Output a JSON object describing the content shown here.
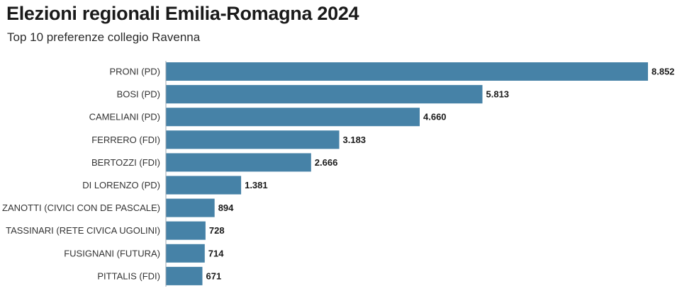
{
  "chart_data": {
    "type": "bar",
    "orientation": "horizontal",
    "title": "Elezioni regionali Emilia-Romagna 2024",
    "subtitle": "Top 10 preferenze collegio Ravenna",
    "categories": [
      "PRONI (PD)",
      "BOSI (PD)",
      "CAMELIANI (PD)",
      "FERRERO (FDI)",
      "BERTOZZI (FDI)",
      "DI LORENZO (PD)",
      "ZANOTTI (CIVICI CON DE PASCALE)",
      "TASSINARI (RETE CIVICA UGOLINI)",
      "FUSIGNANI (FUTURA)",
      "PITTALIS (FDI)"
    ],
    "values": [
      8852,
      5813,
      4660,
      3183,
      2666,
      1381,
      894,
      728,
      714,
      671
    ],
    "value_labels": [
      "8.852",
      "5.813",
      "4.660",
      "3.183",
      "2.666",
      "1.381",
      "894",
      "728",
      "714",
      "671"
    ],
    "xlim": [
      0,
      8852
    ],
    "grid": false,
    "legend": "none",
    "bar_color": "#4682a7"
  }
}
